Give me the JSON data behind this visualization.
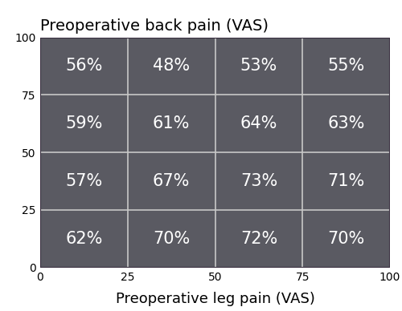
{
  "title": "Preoperative back pain (VAS)",
  "xlabel": "Preoperative leg pain (VAS)",
  "xlim": [
    0,
    100
  ],
  "ylim": [
    0,
    100
  ],
  "xticks": [
    0,
    25,
    50,
    75,
    100
  ],
  "yticks": [
    0,
    25,
    50,
    75,
    100
  ],
  "grid_color": "#c8c8c8",
  "cell_color": "#5a5a62",
  "text_color": "#ffffff",
  "border_color": "#3a3040",
  "values": [
    [
      "62%",
      "70%",
      "72%",
      "70%"
    ],
    [
      "57%",
      "67%",
      "73%",
      "71%"
    ],
    [
      "59%",
      "61%",
      "64%",
      "63%"
    ],
    [
      "56%",
      "48%",
      "53%",
      "55%"
    ]
  ],
  "col_edges": [
    0,
    25,
    50,
    75,
    100
  ],
  "row_edges": [
    0,
    25,
    50,
    75,
    100
  ],
  "font_size": 15,
  "title_fontsize": 14,
  "label_fontsize": 13,
  "tick_fontsize": 10
}
